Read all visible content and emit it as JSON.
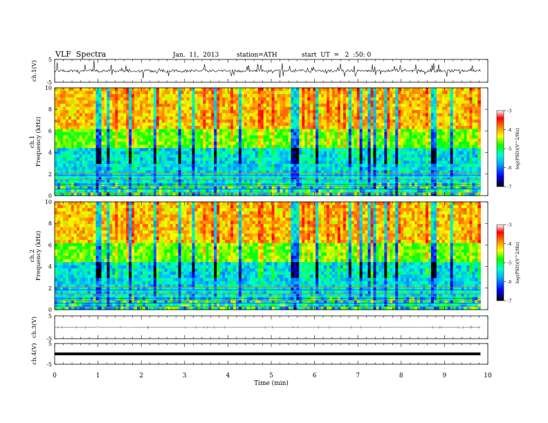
{
  "header": {
    "title": "VLF  Spectra",
    "date": "Jan.  11,  2013",
    "station": "station=ATH",
    "start": "start  UT  =   2  :50: 0"
  },
  "chart_data": [
    {
      "type": "line",
      "ylabel": "ch.1(V)",
      "ylim": [
        -5,
        5
      ],
      "yticks": [
        "5",
        "-5"
      ],
      "note": "noisy time-series trace, fluctuating around ~0 V with spikes to about ±4 V"
    },
    {
      "type": "heatmap",
      "ylabel": [
        "ch.1",
        "Frequency  (kHz)"
      ],
      "ylim": [
        0,
        10
      ],
      "yticks": [
        "0",
        "2",
        "4",
        "6",
        "8",
        "10"
      ],
      "colorbar": {
        "label": "log(PSD)(V^2/Hz)",
        "ticks": [
          "-3",
          "-4",
          "-5",
          "-6",
          "-7"
        ],
        "range": [
          -7,
          -3
        ]
      }
    },
    {
      "type": "heatmap",
      "ylabel": [
        "ch.2",
        "Frequency  (kHz)"
      ],
      "ylim": [
        0,
        10
      ],
      "yticks": [
        "0",
        "2",
        "4",
        "6",
        "8",
        "10"
      ],
      "colorbar": {
        "label": "log(PSD)(V^2/Hz)",
        "ticks": [
          "-3",
          "-4",
          "-5",
          "-6",
          "-7"
        ],
        "range": [
          -7,
          -3
        ]
      }
    },
    {
      "type": "line",
      "ylabel": "ch.3(V)",
      "ylim": [
        -5,
        5
      ],
      "yticks": [
        "5",
        "-5"
      ],
      "note": "near-flat trace around 0 V"
    },
    {
      "type": "line",
      "ylabel": "ch.4(V)",
      "ylim": [
        -5,
        5
      ],
      "yticks": [
        "5",
        "-5"
      ],
      "note": "thick flat band near 0 V"
    }
  ],
  "xaxis": {
    "label": "Time  (min)",
    "ticks": [
      "0",
      "1",
      "2",
      "3",
      "4",
      "5",
      "6",
      "7",
      "8",
      "9",
      "10"
    ],
    "range": [
      0,
      10
    ],
    "data_end": 9.83
  },
  "colors": {
    "trace": "#000000",
    "frame": "#000000",
    "colormap": [
      "#000000",
      "#0000ff",
      "#00ffff",
      "#00ff00",
      "#ffff00",
      "#ff8800",
      "#ff0000",
      "#ffffff"
    ]
  }
}
